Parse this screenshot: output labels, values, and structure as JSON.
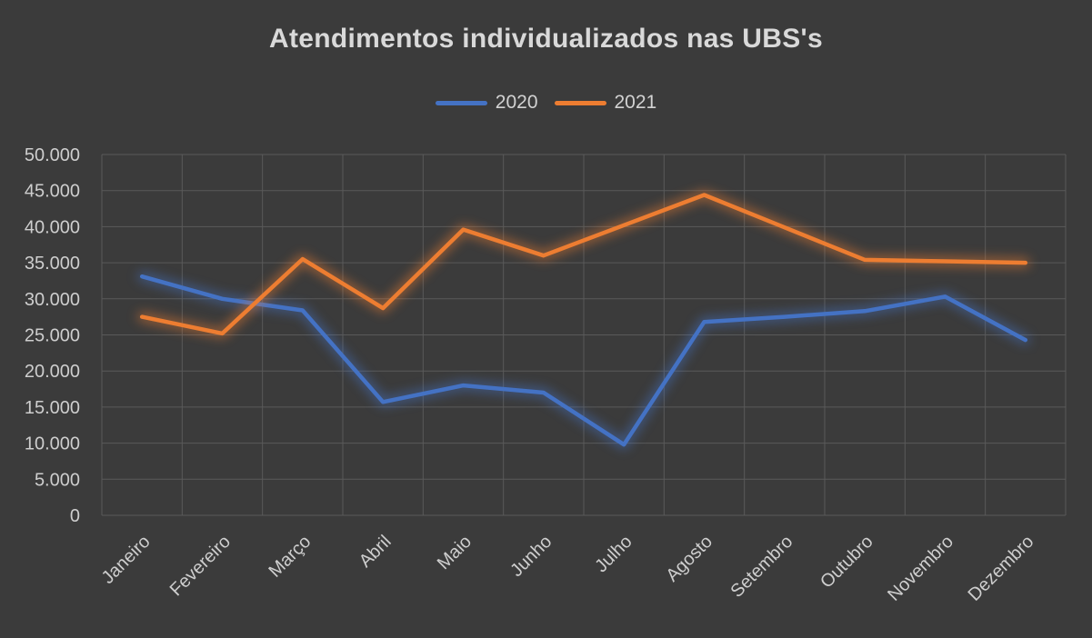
{
  "chart_data": {
    "type": "line",
    "title": "Atendimentos individualizados nas UBS's",
    "categories": [
      "Janeiro",
      "Fevereiro",
      "Março",
      "Abril",
      "Maio",
      "Junho",
      "Julho",
      "Agosto",
      "Setembro",
      "Outubro",
      "Novembro",
      "Dezembro"
    ],
    "series": [
      {
        "name": "2020",
        "color": "#4472C4",
        "values": [
          33100,
          30000,
          28400,
          15700,
          18000,
          17000,
          9800,
          26800,
          27500,
          28300,
          30300,
          24300
        ]
      },
      {
        "name": "2021",
        "color": "#ED7D31",
        "values": [
          27500,
          25200,
          35500,
          28700,
          39600,
          36000,
          40200,
          44400,
          39900,
          35400,
          35200,
          35000
        ]
      }
    ],
    "xlabel": "",
    "ylabel": "",
    "ylim": [
      0,
      50000
    ],
    "ytick_step": 5000,
    "yticks": [
      {
        "value": 0,
        "label": "0"
      },
      {
        "value": 5000,
        "label": "5.000"
      },
      {
        "value": 10000,
        "label": "10.000"
      },
      {
        "value": 15000,
        "label": "15.000"
      },
      {
        "value": 20000,
        "label": "20.000"
      },
      {
        "value": 25000,
        "label": "25.000"
      },
      {
        "value": 30000,
        "label": "30.000"
      },
      {
        "value": 35000,
        "label": "35.000"
      },
      {
        "value": 40000,
        "label": "40.000"
      },
      {
        "value": 45000,
        "label": "45.000"
      },
      {
        "value": 50000,
        "label": "50.000"
      }
    ],
    "grid": true,
    "legend_position": "top",
    "line_glow": true,
    "x_label_rotation_deg": -45,
    "colors": {
      "background": "#3B3B3B",
      "title_text": "#D9D9D9",
      "axis_text": "#CECECE",
      "gridline": "#5A5A5A"
    }
  }
}
